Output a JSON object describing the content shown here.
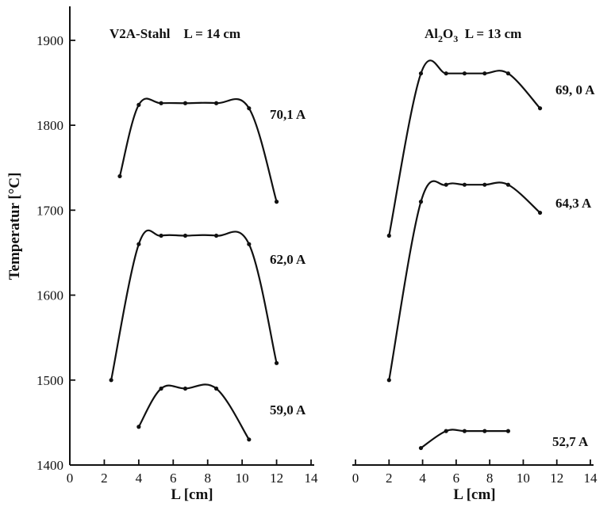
{
  "chart_data": [
    {
      "type": "line",
      "title": "V2A-Stahl    L = 14 cm",
      "xlabel": "L [cm]",
      "ylabel": "Temperatur  [°C]",
      "xlim": [
        0,
        14
      ],
      "ylim": [
        1400,
        1940
      ],
      "x_ticks": [
        "0",
        "2",
        "4",
        "6",
        "8",
        "10",
        "12",
        "14"
      ],
      "y_ticks": [
        "1400",
        "1500",
        "1600",
        "1700",
        "1800",
        "1900"
      ],
      "grid": false,
      "series": [
        {
          "name": "70,1 A",
          "x": [
            2.9,
            4.0,
            5.3,
            6.7,
            8.5,
            10.4,
            12.0
          ],
          "y": [
            1740,
            1824,
            1826,
            1826,
            1826,
            1820,
            1710
          ]
        },
        {
          "name": "62,0 A",
          "x": [
            2.4,
            4.0,
            5.3,
            6.7,
            8.5,
            10.4,
            12.0
          ],
          "y": [
            1500,
            1660,
            1670,
            1670,
            1670,
            1660,
            1520
          ]
        },
        {
          "name": "59,0 A",
          "x": [
            4.0,
            5.3,
            6.7,
            8.5,
            10.4
          ],
          "y": [
            1445,
            1490,
            1490,
            1490,
            1430
          ]
        }
      ]
    },
    {
      "type": "line",
      "title_parts": [
        "Al",
        "2",
        "O",
        "3",
        "  L = 13 cm"
      ],
      "xlabel": "L [cm]",
      "xlim": [
        0,
        14
      ],
      "ylim": [
        1400,
        1940
      ],
      "x_ticks": [
        "0",
        "2",
        "4",
        "6",
        "8",
        "10",
        "12",
        "14"
      ],
      "grid": false,
      "series": [
        {
          "name": "69, 0 A",
          "x": [
            2.0,
            3.9,
            5.4,
            6.5,
            7.7,
            9.1,
            11.0
          ],
          "y": [
            1670,
            1861,
            1861,
            1861,
            1861,
            1861,
            1820
          ]
        },
        {
          "name": "64,3 A",
          "x": [
            2.0,
            3.9,
            5.4,
            6.5,
            7.7,
            9.1,
            11.0
          ],
          "y": [
            1500,
            1710,
            1730,
            1730,
            1730,
            1730,
            1697
          ]
        },
        {
          "name": "52,7 A",
          "x": [
            3.9,
            5.4,
            6.5,
            7.7,
            9.1
          ],
          "y": [
            1420,
            1440,
            1440,
            1440,
            1440
          ]
        }
      ]
    }
  ]
}
